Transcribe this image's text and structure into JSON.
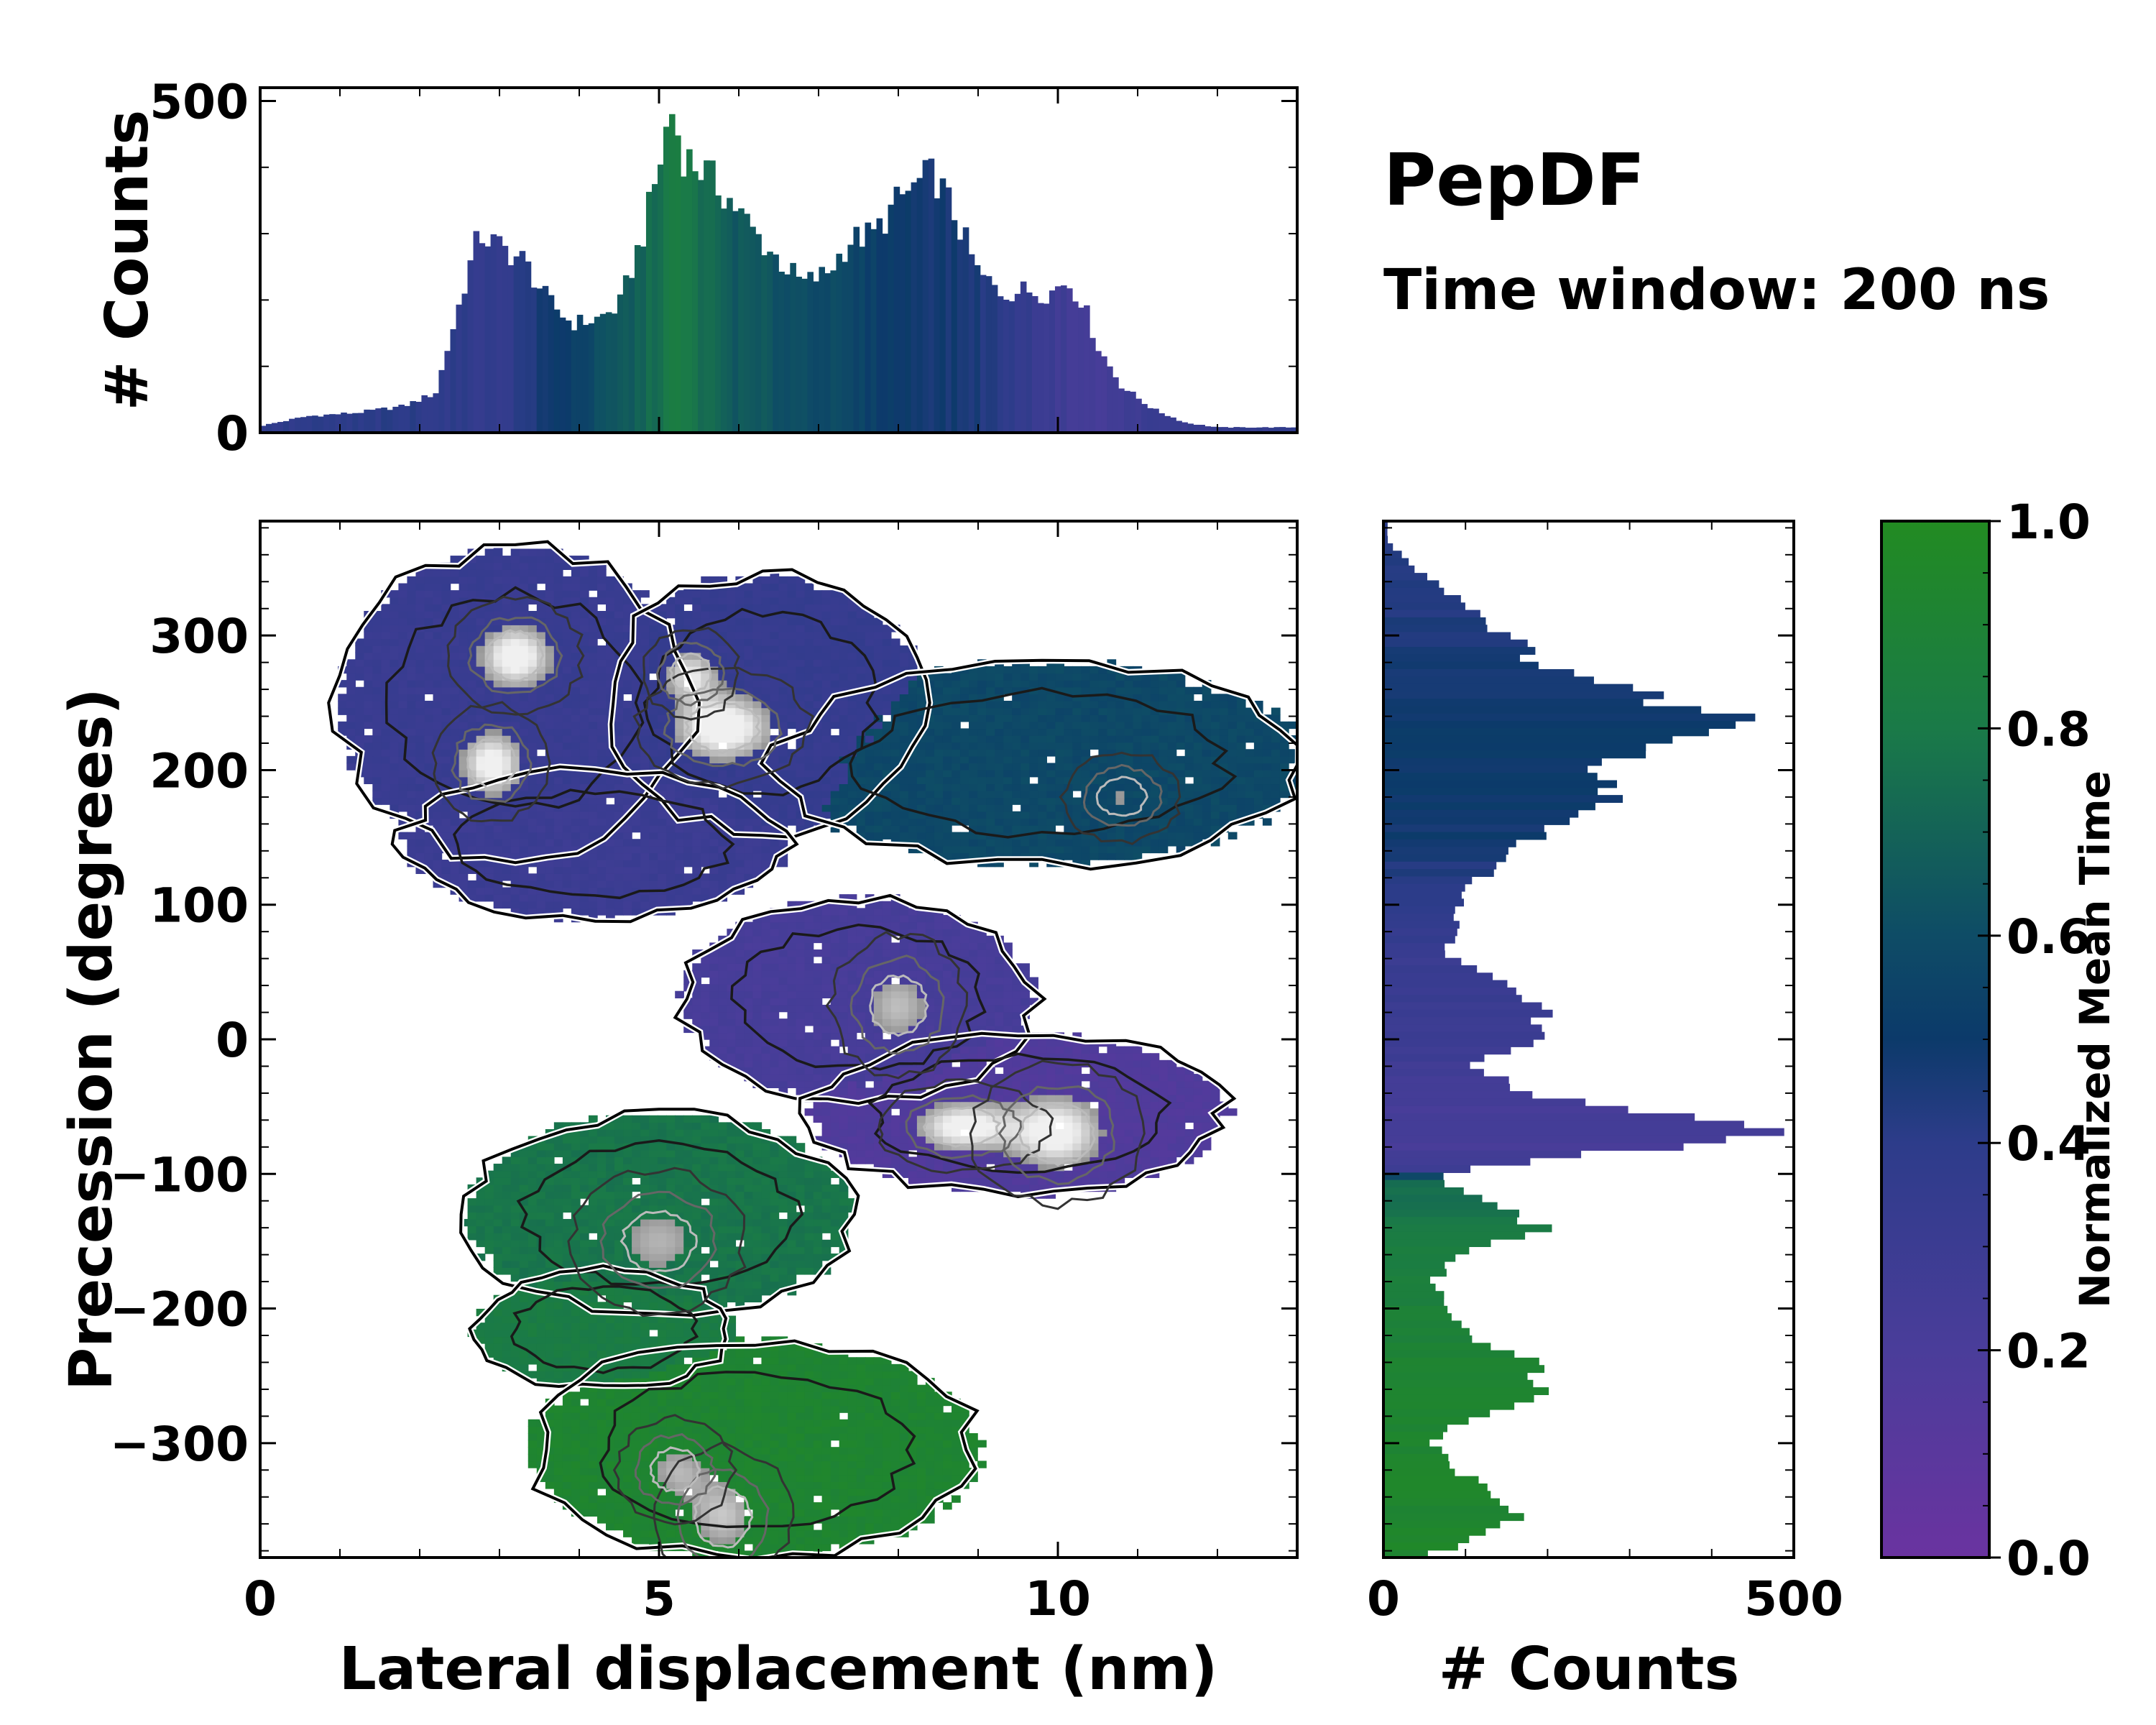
{
  "title": "PepDF",
  "subtitle": "Time window: 200 ns",
  "chart_data": [
    {
      "id": "top-histogram",
      "type": "bar",
      "orientation": "vertical",
      "xlabel": "",
      "ylabel": "# Counts",
      "xlim": [
        0,
        13
      ],
      "ylim": [
        0,
        520
      ],
      "yticks": [
        0,
        500
      ],
      "bin_width": 0.0722,
      "profile": {
        "x": [
          0.0,
          0.6,
          1.2,
          1.8,
          2.2,
          2.4,
          2.6,
          2.75,
          3.0,
          3.3,
          3.6,
          3.9,
          4.2,
          4.5,
          4.8,
          5.0,
          5.15,
          5.3,
          5.6,
          5.9,
          6.2,
          6.5,
          6.8,
          7.1,
          7.4,
          7.7,
          8.0,
          8.3,
          8.45,
          8.7,
          9.0,
          9.3,
          9.6,
          9.9,
          10.1,
          10.3,
          10.5,
          10.8,
          11.2,
          11.6,
          12.0,
          12.5,
          13.0
        ],
        "counts": [
          10,
          25,
          30,
          40,
          60,
          150,
          240,
          300,
          280,
          260,
          200,
          165,
          170,
          190,
          300,
          400,
          490,
          420,
          390,
          350,
          300,
          260,
          225,
          240,
          290,
          300,
          350,
          380,
          390,
          330,
          240,
          210,
          215,
          210,
          230,
          200,
          130,
          70,
          35,
          15,
          8,
          8,
          8
        ]
      },
      "colors": {
        "x": [
          0.0,
          2.0,
          3.0,
          4.0,
          4.7,
          5.2,
          6.0,
          7.0,
          8.0,
          9.0,
          10.0,
          10.5,
          11.0,
          13.0
        ],
        "value": [
          0.38,
          0.4,
          0.36,
          0.55,
          0.68,
          0.82,
          0.65,
          0.6,
          0.5,
          0.45,
          0.28,
          0.22,
          0.3,
          0.38
        ]
      }
    },
    {
      "id": "main-heatmap",
      "type": "heatmap",
      "xlabel": "Lateral displacement (nm)",
      "ylabel": "Precession (degrees)",
      "xlim": [
        0,
        13
      ],
      "ylim": [
        -385,
        385
      ],
      "xticks": [
        0,
        5,
        10
      ],
      "yticks": [
        300,
        200,
        100,
        0,
        -100,
        -200,
        -300
      ],
      "ytick_labels": [
        "300",
        "200",
        "100",
        "0",
        "−100",
        "−200",
        "−300"
      ],
      "colorscale_field": "Normalized Mean Time",
      "clusters": [
        {
          "name": "top-left",
          "cx": 3.2,
          "cy": 250,
          "rx": 2.2,
          "ry": 115,
          "value": 0.32
        },
        {
          "name": "top-mid",
          "cx": 6.3,
          "cy": 250,
          "rx": 2.0,
          "ry": 95,
          "value": 0.34
        },
        {
          "name": "mid-left",
          "cx": 4.2,
          "cy": 145,
          "rx": 2.4,
          "ry": 55,
          "value": 0.3
        },
        {
          "name": "right",
          "cx": 9.8,
          "cy": 205,
          "rx": 3.3,
          "ry": 75,
          "value": 0.58
        },
        {
          "name": "center",
          "cx": 7.5,
          "cy": 30,
          "rx": 2.2,
          "ry": 75,
          "value": 0.22
        },
        {
          "name": "center-low",
          "cx": 9.5,
          "cy": -55,
          "rx": 2.6,
          "ry": 60,
          "value": 0.16
        },
        {
          "name": "lower-left",
          "cx": 5.0,
          "cy": -130,
          "rx": 2.4,
          "ry": 75,
          "value": 0.78
        },
        {
          "name": "low-green",
          "cx": 4.3,
          "cy": -215,
          "rx": 1.6,
          "ry": 45,
          "value": 0.82
        },
        {
          "name": "bottom",
          "cx": 6.2,
          "cy": -305,
          "rx": 2.8,
          "ry": 80,
          "value": 0.92
        }
      ],
      "peaks": [
        {
          "name": "peak-1",
          "x": 3.2,
          "y": 285,
          "sx": 0.35,
          "sy": 18,
          "amp": 1.0
        },
        {
          "name": "peak-2",
          "x": 2.9,
          "y": 205,
          "sx": 0.3,
          "sy": 18,
          "amp": 0.95
        },
        {
          "name": "peak-3",
          "x": 5.8,
          "y": 232,
          "sx": 0.45,
          "sy": 18,
          "amp": 1.0
        },
        {
          "name": "peak-4",
          "x": 5.4,
          "y": 272,
          "sx": 0.25,
          "sy": 14,
          "amp": 0.75
        },
        {
          "name": "peak-5",
          "x": 8.8,
          "y": -65,
          "sx": 0.45,
          "sy": 14,
          "amp": 0.95
        },
        {
          "name": "peak-6",
          "x": 10.0,
          "y": -70,
          "sx": 0.45,
          "sy": 22,
          "amp": 0.95
        },
        {
          "name": "peak-7",
          "x": 8.0,
          "y": 25,
          "sx": 0.35,
          "sy": 22,
          "amp": 0.6
        },
        {
          "name": "peak-8",
          "x": 5.8,
          "y": -355,
          "sx": 0.35,
          "sy": 22,
          "amp": 0.7
        },
        {
          "name": "peak-9",
          "x": 5.0,
          "y": -150,
          "sx": 0.45,
          "sy": 22,
          "amp": 0.55
        },
        {
          "name": "peak-10",
          "x": 5.2,
          "y": -320,
          "sx": 0.3,
          "sy": 16,
          "amp": 0.55
        },
        {
          "name": "peak-11",
          "x": 10.8,
          "y": 180,
          "sx": 0.3,
          "sy": 14,
          "amp": 0.45
        }
      ]
    },
    {
      "id": "right-histogram",
      "type": "bar",
      "orientation": "horizontal",
      "xlabel": "# Counts",
      "ylabel": "",
      "xlim": [
        0,
        500
      ],
      "ylim": [
        -385,
        385
      ],
      "xticks": [
        0,
        500
      ],
      "bin_width": 5.5,
      "profile": {
        "y": [
          370,
          350,
          320,
          300,
          280,
          250,
          238,
          225,
          200,
          180,
          150,
          120,
          100,
          80,
          60,
          40,
          20,
          0,
          -20,
          -40,
          -55,
          -60,
          -68,
          -75,
          -90,
          -100,
          -105,
          -120,
          -140,
          -160,
          -180,
          -200,
          -220,
          -240,
          -255,
          -270,
          -290,
          -300,
          -320,
          -340,
          -355,
          -370,
          -385
        ],
        "counts": [
          5,
          40,
          110,
          150,
          190,
          350,
          440,
          400,
          250,
          300,
          180,
          115,
          95,
          85,
          80,
          150,
          200,
          180,
          110,
          170,
          300,
          400,
          460,
          430,
          180,
          80,
          60,
          120,
          200,
          90,
          60,
          80,
          110,
          180,
          200,
          180,
          80,
          60,
          90,
          150,
          160,
          120,
          40
        ]
      },
      "colors": {
        "y": [
          385,
          280,
          220,
          150,
          60,
          0,
          -40,
          -70,
          -95,
          -105,
          -150,
          -250,
          -385
        ],
        "value": [
          0.4,
          0.46,
          0.5,
          0.48,
          0.32,
          0.3,
          0.25,
          0.22,
          0.25,
          0.72,
          0.82,
          0.92,
          0.94
        ]
      }
    },
    {
      "id": "colorbar",
      "type": "colorbar",
      "label": "Normalized Mean Time",
      "range": [
        0,
        1
      ],
      "ticks": [
        0.0,
        0.2,
        0.4,
        0.6,
        0.8,
        1.0
      ],
      "tick_labels": [
        "0.0",
        "0.2",
        "0.4",
        "0.6",
        "0.8",
        "1.0"
      ],
      "colormap": {
        "stops": [
          0.0,
          0.2,
          0.4,
          0.5,
          0.6,
          0.8,
          1.0
        ],
        "colors": [
          "#6a33a0",
          "#4a3d9a",
          "#2d3c8a",
          "#0c3a6a",
          "#0e4c66",
          "#1a7a48",
          "#228b22"
        ]
      }
    }
  ]
}
